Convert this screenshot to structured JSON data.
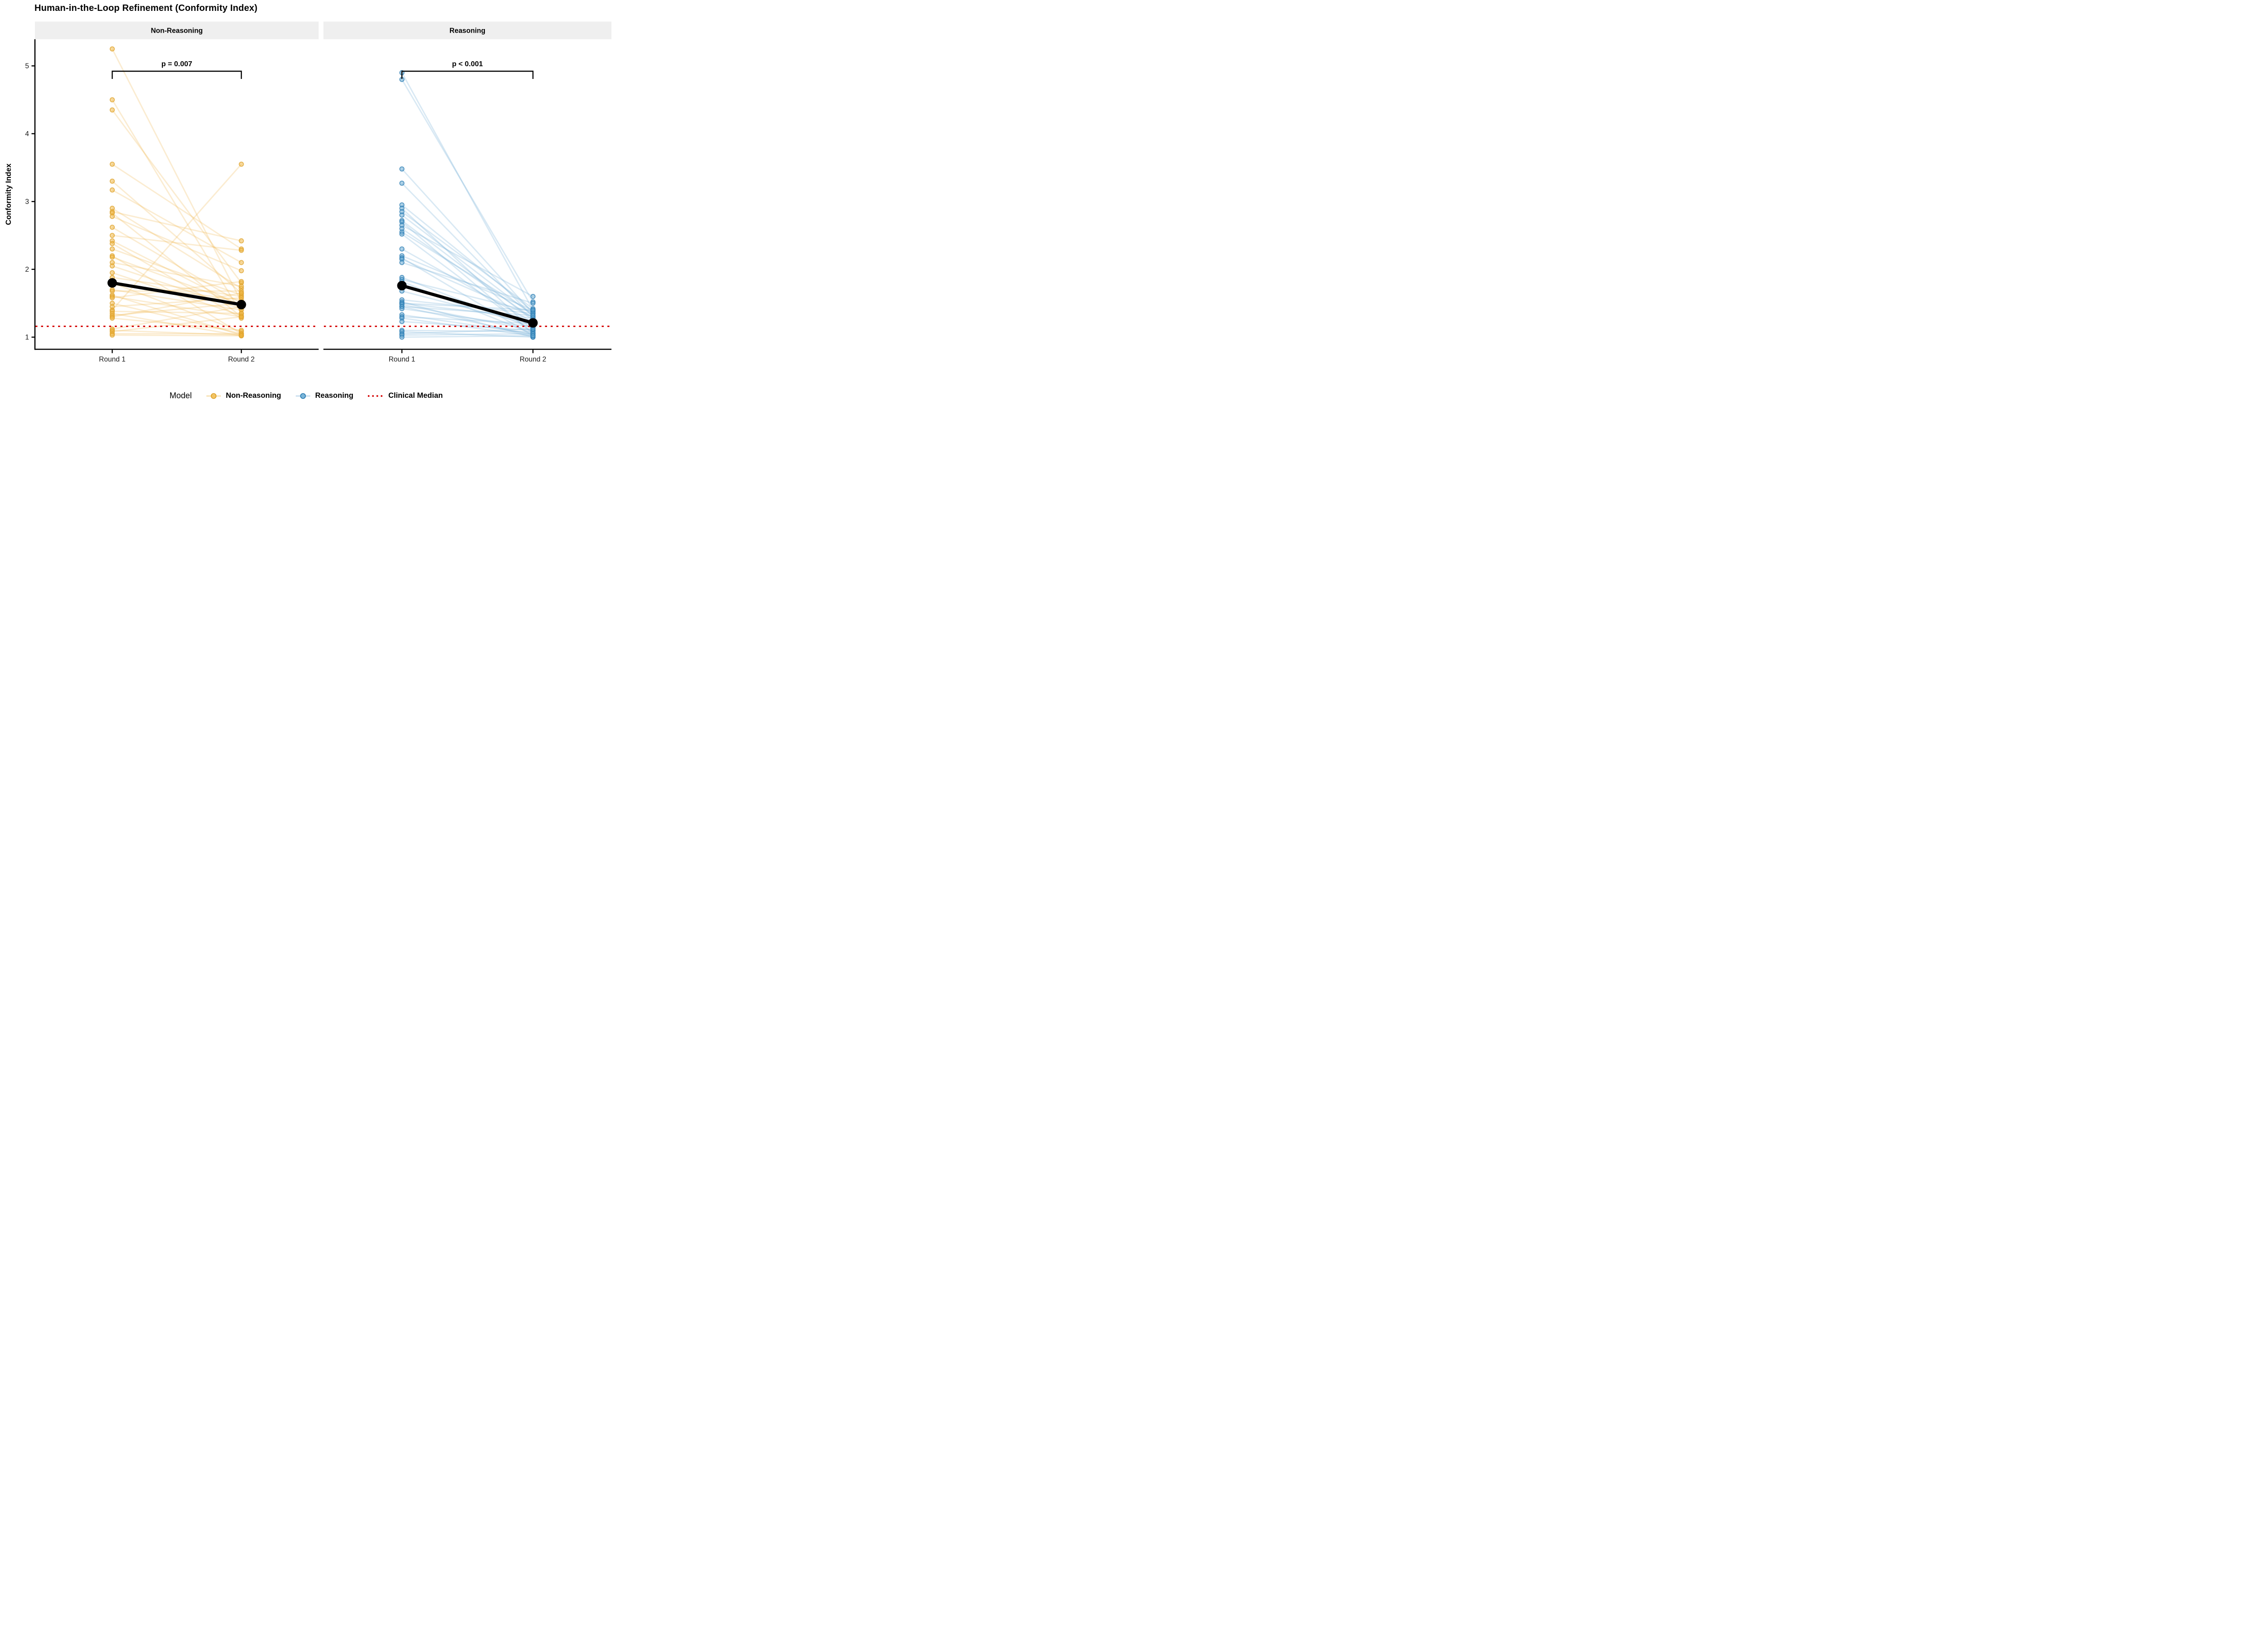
{
  "title": "Human-in-the-Loop Refinement (Conformity Index)",
  "y_axis": {
    "label": "Conformity Index",
    "ticks": [
      1,
      2,
      3,
      4,
      5
    ],
    "range": [
      0.82,
      5.39
    ]
  },
  "x_axis": {
    "categories": [
      "Round 1",
      "Round 2"
    ]
  },
  "legend": {
    "title": "Model",
    "items": [
      {
        "label": "Non-Reasoning",
        "type": "point",
        "fill": "#EFB63F",
        "stroke": "#DFA32C",
        "line": "rgba(238,180,70,0.35)"
      },
      {
        "label": "Reasoning",
        "type": "point",
        "fill": "#63A8D2",
        "stroke": "#2F7FB4",
        "line": "rgba(120,175,215,0.35)"
      },
      {
        "label": "Clinical Median",
        "type": "dotted-line",
        "color": "#D40000"
      }
    ]
  },
  "chart_data": {
    "type": "line",
    "subtype": "paired-slope-faceted",
    "title": "Human-in-the-Loop Refinement (Conformity Index)",
    "ylabel": "Conformity Index",
    "ylim": [
      0.82,
      5.39
    ],
    "yticks": [
      1,
      2,
      3,
      4,
      5
    ],
    "categories": [
      "Round 1",
      "Round 2"
    ],
    "clinical_median": 1.16,
    "clinical_median_color": "#D40000",
    "strip_bg": "#EFEFEF",
    "mean_color": "#000000",
    "legend_position": "bottom",
    "facets": [
      {
        "name": "Non-Reasoning",
        "p_label": "p = 0.007",
        "point_fill": "#EFB63F",
        "point_stroke": "#DFA32C",
        "line_color": "rgba(238,180,70,0.25)",
        "means": [
          1.8,
          1.48
        ],
        "pairs": [
          [
            5.25,
            1.52
          ],
          [
            4.5,
            1.35
          ],
          [
            4.35,
            1.8
          ],
          [
            3.55,
            2.3
          ],
          [
            3.3,
            1.65
          ],
          [
            3.17,
            2.1
          ],
          [
            2.9,
            1.72
          ],
          [
            2.85,
            2.42
          ],
          [
            2.83,
            1.3
          ],
          [
            2.78,
            1.98
          ],
          [
            2.62,
            1.5
          ],
          [
            2.5,
            2.28
          ],
          [
            2.42,
            1.45
          ],
          [
            2.38,
            1.28
          ],
          [
            2.3,
            1.62
          ],
          [
            2.2,
            1.05
          ],
          [
            2.18,
            1.48
          ],
          [
            2.1,
            1.75
          ],
          [
            2.05,
            1.42
          ],
          [
            1.95,
            1.32
          ],
          [
            1.88,
            1.6
          ],
          [
            1.8,
            1.08
          ],
          [
            1.78,
            1.55
          ],
          [
            1.7,
            1.4
          ],
          [
            1.68,
            1.68
          ],
          [
            1.62,
            1.03
          ],
          [
            1.6,
            1.3
          ],
          [
            1.58,
            1.82
          ],
          [
            1.5,
            1.05
          ],
          [
            1.45,
            1.58
          ],
          [
            1.4,
            3.55
          ],
          [
            1.38,
            1.35
          ],
          [
            1.35,
            1.02
          ],
          [
            1.32,
            1.5
          ],
          [
            1.3,
            1.65
          ],
          [
            1.28,
            1.1
          ],
          [
            1.12,
            1.45
          ],
          [
            1.1,
            1.03
          ],
          [
            1.08,
            1.3
          ],
          [
            1.05,
            1.05
          ],
          [
            1.03,
            1.02
          ]
        ]
      },
      {
        "name": "Reasoning",
        "p_label": "p < 0.001",
        "point_fill": "#63A8D2",
        "point_stroke": "#2F7FB4",
        "line_color": "rgba(120,175,215,0.28)",
        "means": [
          1.76,
          1.21
        ],
        "pairs": [
          [
            4.9,
            1.4
          ],
          [
            4.8,
            1.52
          ],
          [
            3.48,
            1.35
          ],
          [
            3.27,
            1.3
          ],
          [
            2.95,
            1.38
          ],
          [
            2.9,
            1.1
          ],
          [
            2.85,
            1.42
          ],
          [
            2.8,
            1.32
          ],
          [
            2.72,
            1.25
          ],
          [
            2.7,
            1.05
          ],
          [
            2.65,
            1.6
          ],
          [
            2.6,
            1.28
          ],
          [
            2.55,
            1.35
          ],
          [
            2.52,
            1.07
          ],
          [
            2.3,
            1.22
          ],
          [
            2.2,
            1.4
          ],
          [
            2.17,
            1.02
          ],
          [
            2.15,
            1.3
          ],
          [
            2.1,
            1.5
          ],
          [
            1.88,
            1.13
          ],
          [
            1.85,
            1.37
          ],
          [
            1.82,
            1.05
          ],
          [
            1.68,
            1.18
          ],
          [
            1.55,
            1.35
          ],
          [
            1.52,
            1.0
          ],
          [
            1.5,
            1.28
          ],
          [
            1.5,
            1.4
          ],
          [
            1.48,
            1.1
          ],
          [
            1.45,
            1.03
          ],
          [
            1.45,
            1.32
          ],
          [
            1.42,
            1.15
          ],
          [
            1.33,
            1.05
          ],
          [
            1.3,
            1.2
          ],
          [
            1.28,
            1.02
          ],
          [
            1.23,
            1.1
          ],
          [
            1.1,
            1.08
          ],
          [
            1.08,
            1.0
          ],
          [
            1.05,
            1.12
          ],
          [
            1.03,
            1.05
          ],
          [
            1.0,
            1.02
          ]
        ]
      }
    ]
  }
}
